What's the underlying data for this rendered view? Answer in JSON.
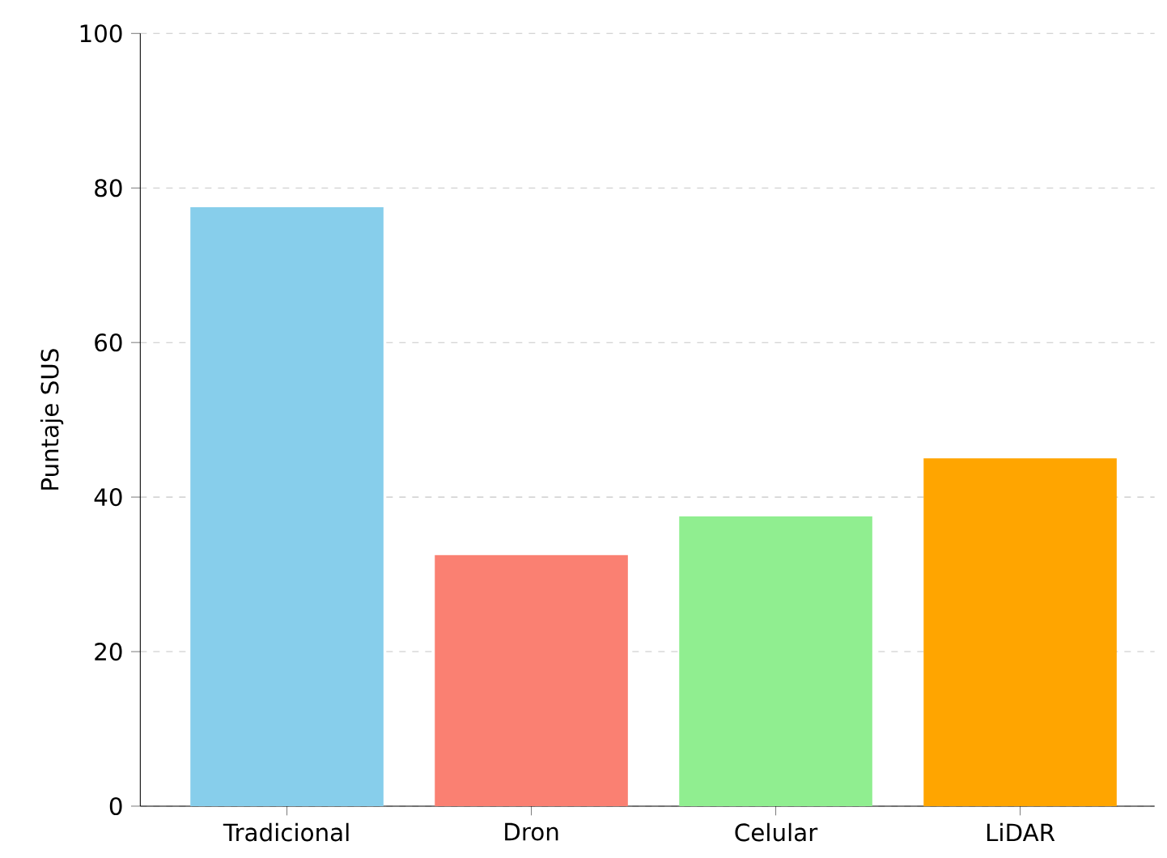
{
  "chart_data": {
    "type": "bar",
    "ylabel": "Puntaje SUS",
    "categories": [
      "Tradicional",
      "Dron",
      "Celular",
      "LiDAR"
    ],
    "values": [
      77.5,
      32.5,
      37.5,
      45
    ],
    "colors": [
      "#87ceeb",
      "#fa8072",
      "#90ee90",
      "#ffa500"
    ],
    "ylim": [
      0,
      100
    ],
    "yticks": [
      0,
      20,
      40,
      60,
      80,
      100
    ],
    "grid": "y"
  }
}
